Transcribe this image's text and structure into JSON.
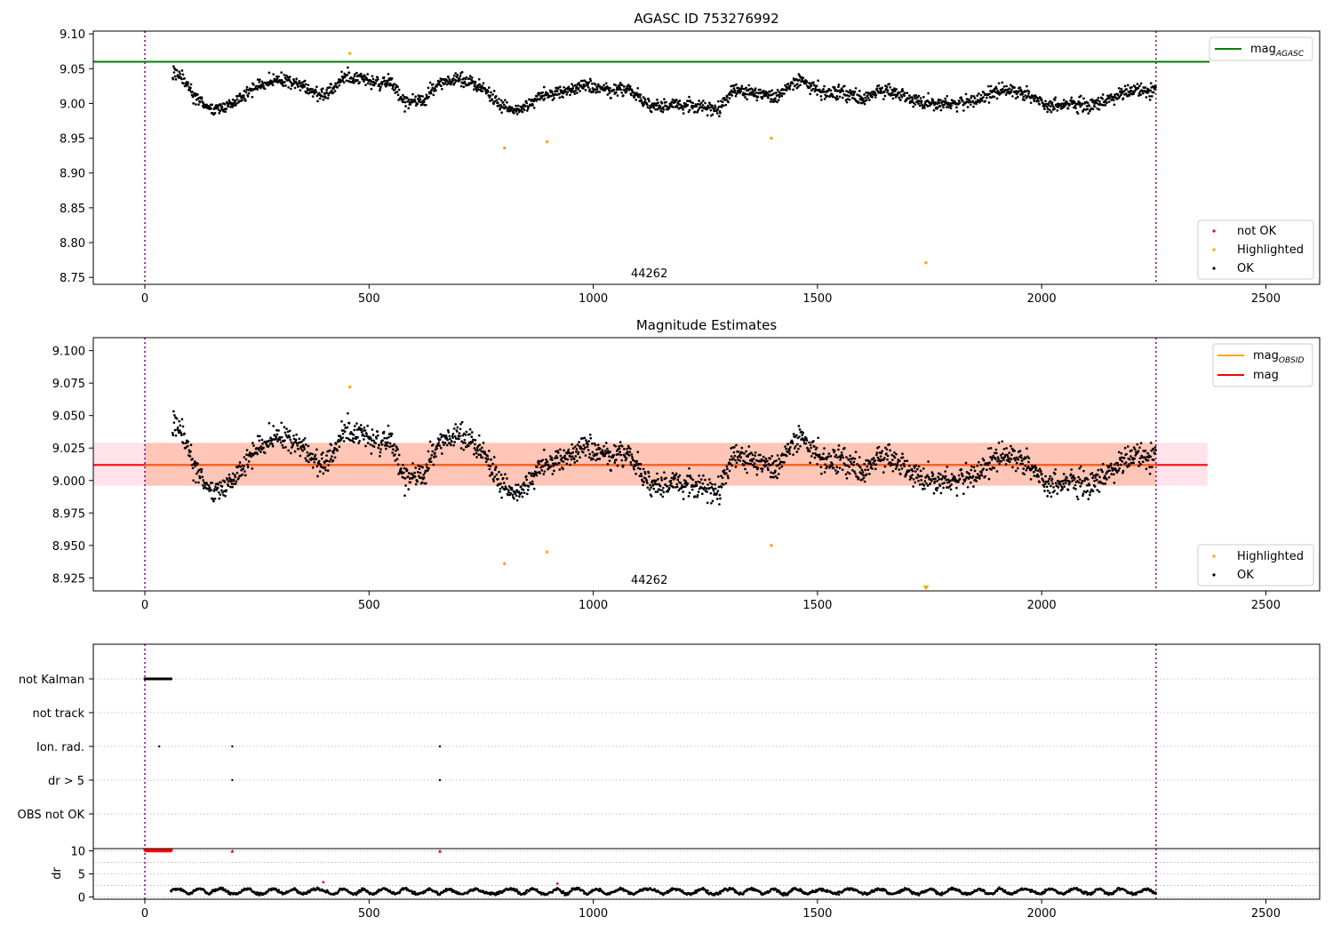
{
  "chart_data": [
    {
      "type": "scatter",
      "title": "AGASC ID 753276992",
      "xlim": [
        -115,
        2620
      ],
      "ylim": [
        8.74,
        9.104
      ],
      "xticks": [
        "0",
        "500",
        "1000",
        "1500",
        "2000",
        "2500"
      ],
      "yticks": [
        "8.75",
        "8.80",
        "8.85",
        "8.90",
        "8.95",
        "9.00",
        "9.05",
        "9.10"
      ],
      "obsid_label": "44262",
      "obsid_label_x": 1125,
      "obs_bounds": [
        0,
        2255
      ],
      "agasc_mag": 9.06,
      "trend": {
        "x": [
          60,
          80,
          110,
          150,
          200,
          250,
          300,
          350,
          400,
          450,
          500,
          550,
          580,
          620,
          660,
          700,
          750,
          790,
          830,
          880,
          930,
          980,
          1030,
          1080,
          1130,
          1180,
          1230,
          1280,
          1310,
          1360,
          1410,
          1460,
          1510,
          1560,
          1610,
          1660,
          1710,
          1760,
          1810,
          1860,
          1910,
          1960,
          2010,
          2060,
          2110,
          2160,
          2210,
          2255
        ],
        "y": [
          9.044,
          9.04,
          9.01,
          8.99,
          9.0,
          9.025,
          9.035,
          9.025,
          9.01,
          9.04,
          9.032,
          9.03,
          9.0,
          9.005,
          9.03,
          9.035,
          9.025,
          9.0,
          8.99,
          9.01,
          9.015,
          9.025,
          9.02,
          9.02,
          8.995,
          8.998,
          8.995,
          8.99,
          9.02,
          9.015,
          9.01,
          9.035,
          9.015,
          9.015,
          9.008,
          9.02,
          9.005,
          9.0,
          9.0,
          9.005,
          9.02,
          9.015,
          8.998,
          9.0,
          8.998,
          9.008,
          9.018,
          9.02
        ]
      },
      "series": [
        {
          "name": "not OK",
          "color": "#ff0000",
          "x": [],
          "y": []
        },
        {
          "name": "Highlighted",
          "color": "#ffa500",
          "x": [
            457,
            802,
            897,
            1397,
            1742
          ],
          "y": [
            9.072,
            8.936,
            8.945,
            8.95,
            8.771
          ]
        },
        {
          "name": "OK",
          "color": "#000000"
        }
      ],
      "legend_lines": [
        {
          "label": "mag",
          "sub": "AGASC",
          "color": "#008000"
        }
      ],
      "legend_position": {
        "lines": "upper right",
        "points": "lower right"
      }
    },
    {
      "type": "scatter",
      "title": "Magnitude Estimates",
      "xlim": [
        -115,
        2620
      ],
      "ylim": [
        8.915,
        9.11
      ],
      "xticks": [
        "0",
        "500",
        "1000",
        "1500",
        "2000",
        "2500"
      ],
      "yticks": [
        "8.925",
        "8.950",
        "8.975",
        "9.000",
        "9.025",
        "9.050",
        "9.075",
        "9.100"
      ],
      "obsid_label": "44262",
      "obsid_label_x": 1125,
      "obs_bounds": [
        0,
        2255
      ],
      "mag": 9.012,
      "mag_band": [
        8.996,
        9.029
      ],
      "band_x": [
        -115,
        2370
      ],
      "series": [
        {
          "name": "Highlighted",
          "color": "#ffa500",
          "x": [
            457,
            802,
            897,
            1397,
            1742
          ],
          "y": [
            9.072,
            8.936,
            8.945,
            8.95,
            8.917
          ]
        },
        {
          "name": "OK",
          "color": "#000000"
        }
      ],
      "legend_lines": [
        {
          "label": "mag",
          "sub": "OBSID",
          "color": "#ffa500"
        },
        {
          "label": "mag",
          "sub": "",
          "color": "#ff0000"
        }
      ],
      "legend_position": {
        "lines": "upper right",
        "points": "lower right"
      }
    },
    {
      "type": "scatter",
      "title": "",
      "xlim": [
        -115,
        2620
      ],
      "xticks": [
        "0",
        "500",
        "1000",
        "1500",
        "2000",
        "2500"
      ],
      "obs_bounds": [
        0,
        2255
      ],
      "flag_rows": [
        "not Kalman",
        "not track",
        "Ion. rad.",
        "dr > 5",
        "OBS not OK"
      ],
      "flag_points": [
        {
          "row": "not Kalman",
          "x_start": 0,
          "x_end": 60
        },
        {
          "row": "Ion. rad.",
          "x": [
            32,
            195,
            658
          ]
        },
        {
          "row": "dr > 5",
          "x": [
            195,
            658
          ]
        }
      ],
      "dr": {
        "ylabel": "dr",
        "ylim": [
          -0.5,
          10.5
        ],
        "yticks": [
          "0",
          "5",
          "10"
        ],
        "clipped_x": [
          0,
          6,
          12,
          18,
          24,
          30,
          36,
          42,
          48,
          54,
          60,
          195,
          658
        ],
        "clipped_value": 10,
        "outliers": [
          {
            "x": 398,
            "y": 3.2
          },
          {
            "x": 920,
            "y": 2.9
          }
        ]
      }
    }
  ]
}
